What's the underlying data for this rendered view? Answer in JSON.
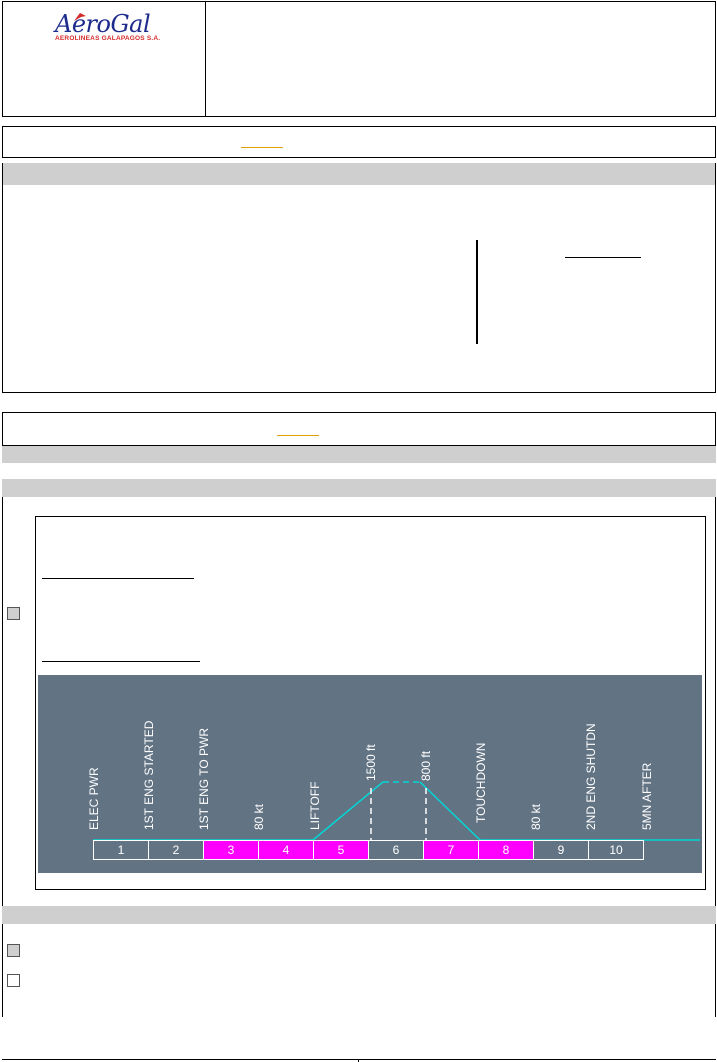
{
  "header": {
    "logo_brand": "AeroGal",
    "logo_subtitle": "AEROLINEAS GALAPAGOS S.A."
  },
  "colors": {
    "diagram_background": "#627383",
    "highlight_phase": "#ff00ff",
    "normal_phase": "#627383",
    "flight_path": "#00d8d8",
    "section_gray": "#cfcfcf"
  },
  "flight_diagram": {
    "phases": [
      {
        "number": "1",
        "highlighted": false
      },
      {
        "number": "2",
        "highlighted": false
      },
      {
        "number": "3",
        "highlighted": true
      },
      {
        "number": "4",
        "highlighted": true
      },
      {
        "number": "5",
        "highlighted": true
      },
      {
        "number": "6",
        "highlighted": false
      },
      {
        "number": "7",
        "highlighted": true
      },
      {
        "number": "8",
        "highlighted": true
      },
      {
        "number": "9",
        "highlighted": false
      },
      {
        "number": "10",
        "highlighted": false
      }
    ],
    "labels": [
      "ELEC PWR",
      "1ST ENG STARTED",
      "1ST ENG TO PWR",
      "80 kt",
      "LIFTOFF",
      "1500 ft",
      "800 ft",
      "TOUCHDOWN",
      "80 kt",
      "2ND ENG SHUTDN",
      "5MN AFTER"
    ]
  },
  "checkboxes": [
    {
      "name": "diagram-checkbox",
      "checked": true
    },
    {
      "name": "item-checkbox-1",
      "checked": true
    },
    {
      "name": "item-checkbox-2",
      "checked": false
    }
  ]
}
